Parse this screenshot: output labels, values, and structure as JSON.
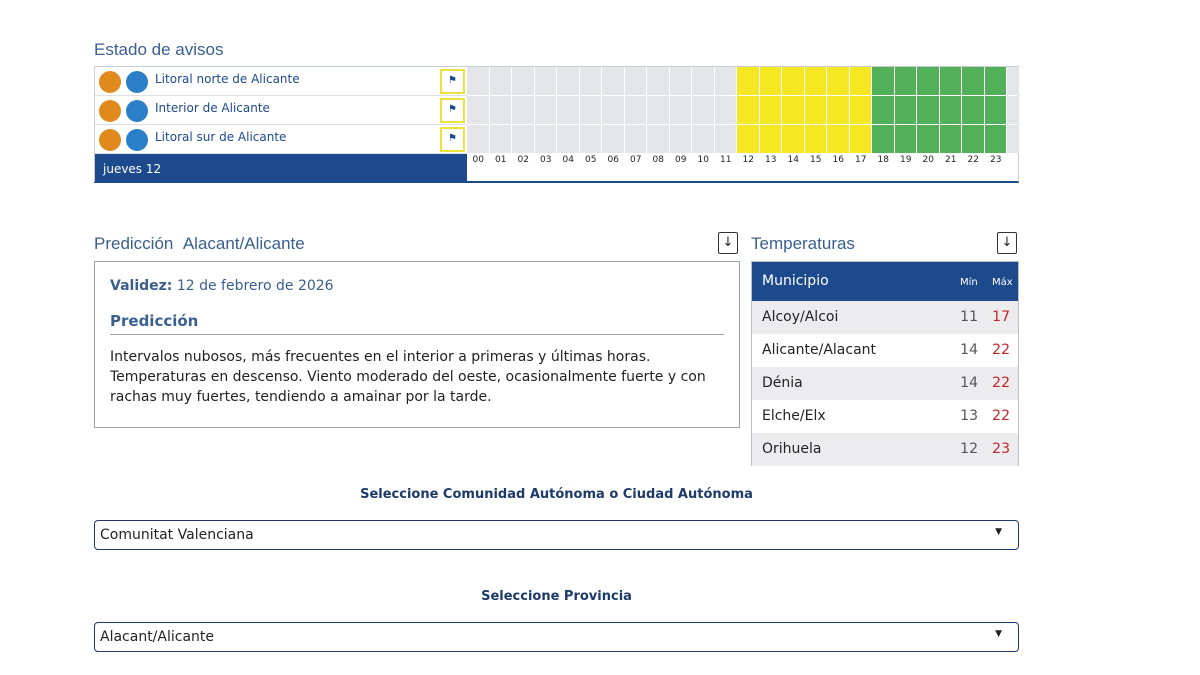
{
  "warnings": {
    "title": "Estado de avisos",
    "day": "jueves 12",
    "hours": [
      "00",
      "01",
      "02",
      "03",
      "04",
      "05",
      "06",
      "07",
      "08",
      "09",
      "10",
      "11",
      "12",
      "13",
      "14",
      "15",
      "16",
      "17",
      "18",
      "19",
      "20",
      "21",
      "22",
      "23"
    ],
    "zones": [
      {
        "name": "Litoral norte de Alicante",
        "colors": [
          "#e4e5e8",
          "#e4e5e8",
          "#e4e5e8",
          "#e4e5e8",
          "#e4e5e8",
          "#e4e5e8",
          "#e4e5e8",
          "#e4e5e8",
          "#e4e5e8",
          "#e4e5e8",
          "#e4e5e8",
          "#e4e5e8",
          "#f5e823",
          "#f5e823",
          "#f5e823",
          "#f5e823",
          "#f5e823",
          "#f5e823",
          "#52b158",
          "#52b158",
          "#52b158",
          "#52b158",
          "#52b158",
          "#52b158"
        ]
      },
      {
        "name": "Interior de Alicante",
        "colors": [
          "#e4e5e8",
          "#e4e5e8",
          "#e4e5e8",
          "#e4e5e8",
          "#e4e5e8",
          "#e4e5e8",
          "#e4e5e8",
          "#e4e5e8",
          "#e4e5e8",
          "#e4e5e8",
          "#e4e5e8",
          "#e4e5e8",
          "#f5e823",
          "#f5e823",
          "#f5e823",
          "#f5e823",
          "#f5e823",
          "#f5e823",
          "#52b158",
          "#52b158",
          "#52b158",
          "#52b158",
          "#52b158",
          "#52b158"
        ]
      },
      {
        "name": "Litoral sur de Alicante",
        "colors": [
          "#e4e5e8",
          "#e4e5e8",
          "#e4e5e8",
          "#e4e5e8",
          "#e4e5e8",
          "#e4e5e8",
          "#e4e5e8",
          "#e4e5e8",
          "#e4e5e8",
          "#e4e5e8",
          "#e4e5e8",
          "#e4e5e8",
          "#f5e823",
          "#f5e823",
          "#f5e823",
          "#f5e823",
          "#f5e823",
          "#f5e823",
          "#52b158",
          "#52b158",
          "#52b158",
          "#52b158",
          "#52b158",
          "#52b158"
        ]
      }
    ]
  },
  "prediction": {
    "title": "Predicción",
    "place": "Alacant/Alicante",
    "validity_label": "Validez:",
    "validity": "12 de febrero de 2026",
    "heading": "Predicción",
    "text": "Intervalos nubosos, más frecuentes en el interior a primeras y últimas horas. Temperaturas en descenso. Viento moderado del oeste, ocasionalmente fuerte y con rachas muy fuertes, tendiendo a amainar por la tarde."
  },
  "temperatures": {
    "title": "Temperaturas",
    "columns": [
      "Municipio",
      "Mín",
      "Máx"
    ],
    "rows": [
      [
        "Alcoy/Alcoi",
        11,
        17
      ],
      [
        "Alicante/Alacant",
        14,
        22
      ],
      [
        "Dénia",
        14,
        22
      ],
      [
        "Elche/Elx",
        13,
        22
      ],
      [
        "Orihuela",
        12,
        23
      ]
    ]
  },
  "selectors": [
    {
      "label": "Seleccione Comunidad Autónoma o Ciudad Autónoma",
      "value": "Comunitat Valenciana"
    },
    {
      "label": "Seleccione Provincia",
      "value": "Alacant/Alicante"
    }
  ]
}
